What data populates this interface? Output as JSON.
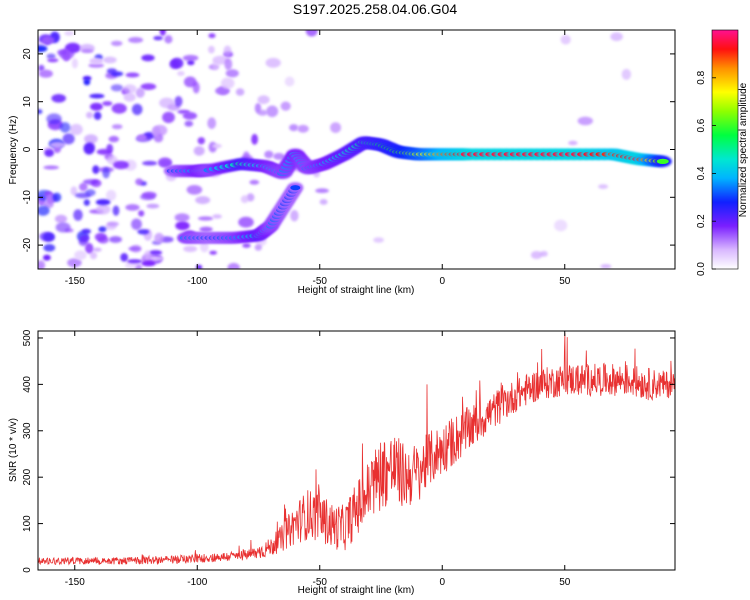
{
  "title": "S197.2025.258.04.06.G04",
  "chart_data": [
    {
      "type": "heatmap",
      "name": "spectrogram",
      "xlabel": "Height of straight line (km)",
      "ylabel": "Frequency (Hz)",
      "xlim": [
        -165,
        95
      ],
      "ylim": [
        -25,
        25
      ],
      "xticks": [
        -150,
        -100,
        -50,
        0,
        50
      ],
      "xtick_labels": [
        "-150",
        "-100",
        "-50",
        "0",
        "50"
      ],
      "yticks": [
        -20,
        -10,
        0,
        10,
        20
      ],
      "ytick_labels": [
        "-20",
        "-10",
        "0",
        "10",
        "20"
      ],
      "colorbar": {
        "label": "Normalized spectral amplitude",
        "range": [
          0,
          1
        ],
        "ticks": [
          0.0,
          0.2,
          0.4,
          0.6,
          0.8
        ],
        "tick_labels": [
          "0.0",
          "0.2",
          "0.4",
          "0.6",
          "0.8"
        ]
      },
      "main_trace": [
        {
          "x": -110,
          "y": -4.5,
          "a": 0.3
        },
        {
          "x": -100,
          "y": -4.5,
          "a": 0.4
        },
        {
          "x": -95,
          "y": -4.3,
          "a": 0.35
        },
        {
          "x": -82,
          "y": -3.0,
          "a": 0.5
        },
        {
          "x": -72,
          "y": -3.5,
          "a": 0.4
        },
        {
          "x": -65,
          "y": -5.0,
          "a": 0.35
        },
        {
          "x": -60,
          "y": -1.0,
          "a": 0.4
        },
        {
          "x": -55,
          "y": -4.0,
          "a": 0.35
        },
        {
          "x": -48,
          "y": -3.0,
          "a": 0.4
        },
        {
          "x": -40,
          "y": -1.0,
          "a": 0.45
        },
        {
          "x": -32,
          "y": 1.5,
          "a": 0.5
        },
        {
          "x": -25,
          "y": 1.0,
          "a": 0.55
        },
        {
          "x": -18,
          "y": -0.5,
          "a": 0.6
        },
        {
          "x": -10,
          "y": -1.0,
          "a": 0.7
        },
        {
          "x": 0,
          "y": -1.0,
          "a": 0.85
        },
        {
          "x": 10,
          "y": -1.0,
          "a": 0.95
        },
        {
          "x": 25,
          "y": -1.0,
          "a": 0.95
        },
        {
          "x": 40,
          "y": -1.0,
          "a": 0.95
        },
        {
          "x": 55,
          "y": -1.0,
          "a": 0.95
        },
        {
          "x": 70,
          "y": -1.0,
          "a": 0.9
        },
        {
          "x": 80,
          "y": -2.0,
          "a": 0.95
        },
        {
          "x": 90,
          "y": -2.5,
          "a": 0.6
        }
      ],
      "lower_trace": [
        {
          "x": -105,
          "y": -18.5,
          "a": 0.35
        },
        {
          "x": -95,
          "y": -18.5,
          "a": 0.3
        },
        {
          "x": -85,
          "y": -18.5,
          "a": 0.35
        },
        {
          "x": -75,
          "y": -18.0,
          "a": 0.45
        },
        {
          "x": -70,
          "y": -16.0,
          "a": 0.35
        },
        {
          "x": -65,
          "y": -12.0,
          "a": 0.3
        },
        {
          "x": -60,
          "y": -8.0,
          "a": 0.3
        }
      ]
    },
    {
      "type": "line",
      "name": "snr",
      "xlabel": "Height of straight line (km)",
      "ylabel": "SNR (10 * v/v)",
      "xlim": [
        -165,
        95
      ],
      "ylim": [
        0,
        515
      ],
      "xticks": [
        -150,
        -100,
        -50,
        0,
        50
      ],
      "xtick_labels": [
        "-150",
        "-100",
        "-50",
        "0",
        "50"
      ],
      "yticks": [
        0,
        100,
        200,
        300,
        400,
        500
      ],
      "ytick_labels": [
        "0",
        "100",
        "200",
        "300",
        "400",
        "500"
      ],
      "color": "#e83030",
      "x": [
        -165,
        -150,
        -130,
        -110,
        -100,
        -90,
        -80,
        -75,
        -70,
        -65,
        -60,
        -55,
        -50,
        -45,
        -40,
        -35,
        -30,
        -25,
        -20,
        -15,
        -10,
        -5,
        0,
        5,
        10,
        15,
        20,
        25,
        30,
        35,
        40,
        45,
        50,
        55,
        60,
        65,
        70,
        75,
        80,
        85,
        90,
        95
      ],
      "y": [
        20,
        20,
        20,
        22,
        25,
        28,
        32,
        38,
        50,
        70,
        100,
        120,
        115,
        95,
        90,
        130,
        170,
        210,
        220,
        200,
        210,
        240,
        260,
        280,
        300,
        320,
        340,
        360,
        375,
        390,
        400,
        405,
        410,
        410,
        410,
        410,
        410,
        410,
        405,
        400,
        400,
        400
      ],
      "noise": [
        8,
        8,
        8,
        9,
        10,
        10,
        12,
        15,
        20,
        30,
        45,
        55,
        55,
        50,
        50,
        60,
        70,
        80,
        80,
        70,
        65,
        60,
        55,
        55,
        50,
        45,
        40,
        40,
        35,
        35,
        35,
        35,
        35,
        35,
        35,
        35,
        35,
        35,
        35,
        35,
        30,
        30
      ]
    }
  ]
}
